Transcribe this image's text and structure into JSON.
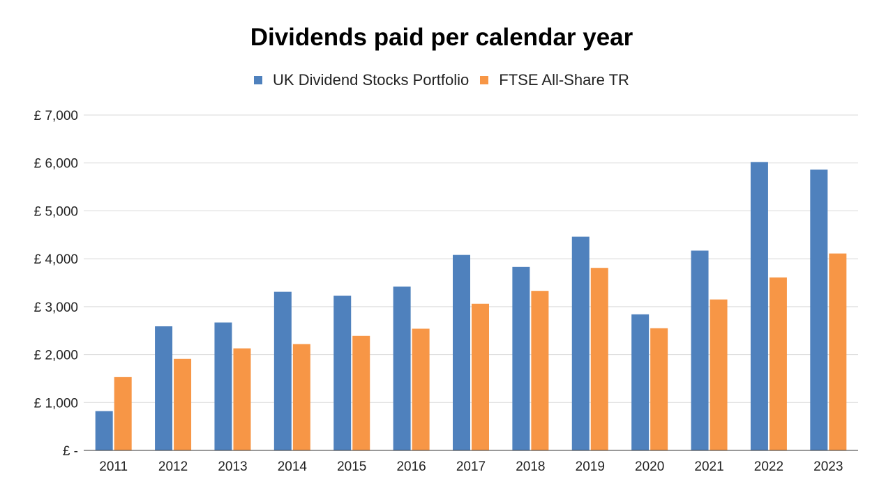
{
  "chart_data": {
    "type": "bar",
    "title": "Dividends paid per calendar year",
    "categories": [
      "2011",
      "2012",
      "2013",
      "2014",
      "2015",
      "2016",
      "2017",
      "2018",
      "2019",
      "2020",
      "2021",
      "2022",
      "2023"
    ],
    "series": [
      {
        "name": "UK Dividend Stocks Portfolio",
        "color": "#4f81bd",
        "values": [
          820,
          2590,
          2670,
          3310,
          3230,
          3420,
          4080,
          3830,
          4460,
          2840,
          4170,
          6020,
          5860
        ]
      },
      {
        "name": "FTSE All-Share TR",
        "color": "#f79646",
        "values": [
          1530,
          1910,
          2130,
          2220,
          2390,
          2540,
          3060,
          3330,
          3810,
          2550,
          3150,
          3610,
          4110
        ]
      }
    ],
    "ylim": [
      0,
      7000
    ],
    "yticks": [
      0,
      1000,
      2000,
      3000,
      4000,
      5000,
      6000,
      7000
    ],
    "ytick_labels": [
      "£ -",
      "£ 1,000",
      "£ 2,000",
      "£ 3,000",
      "£ 4,000",
      "£ 5,000",
      "£ 6,000",
      "£ 7,000"
    ],
    "grid": true,
    "legend_position": "top-center"
  }
}
